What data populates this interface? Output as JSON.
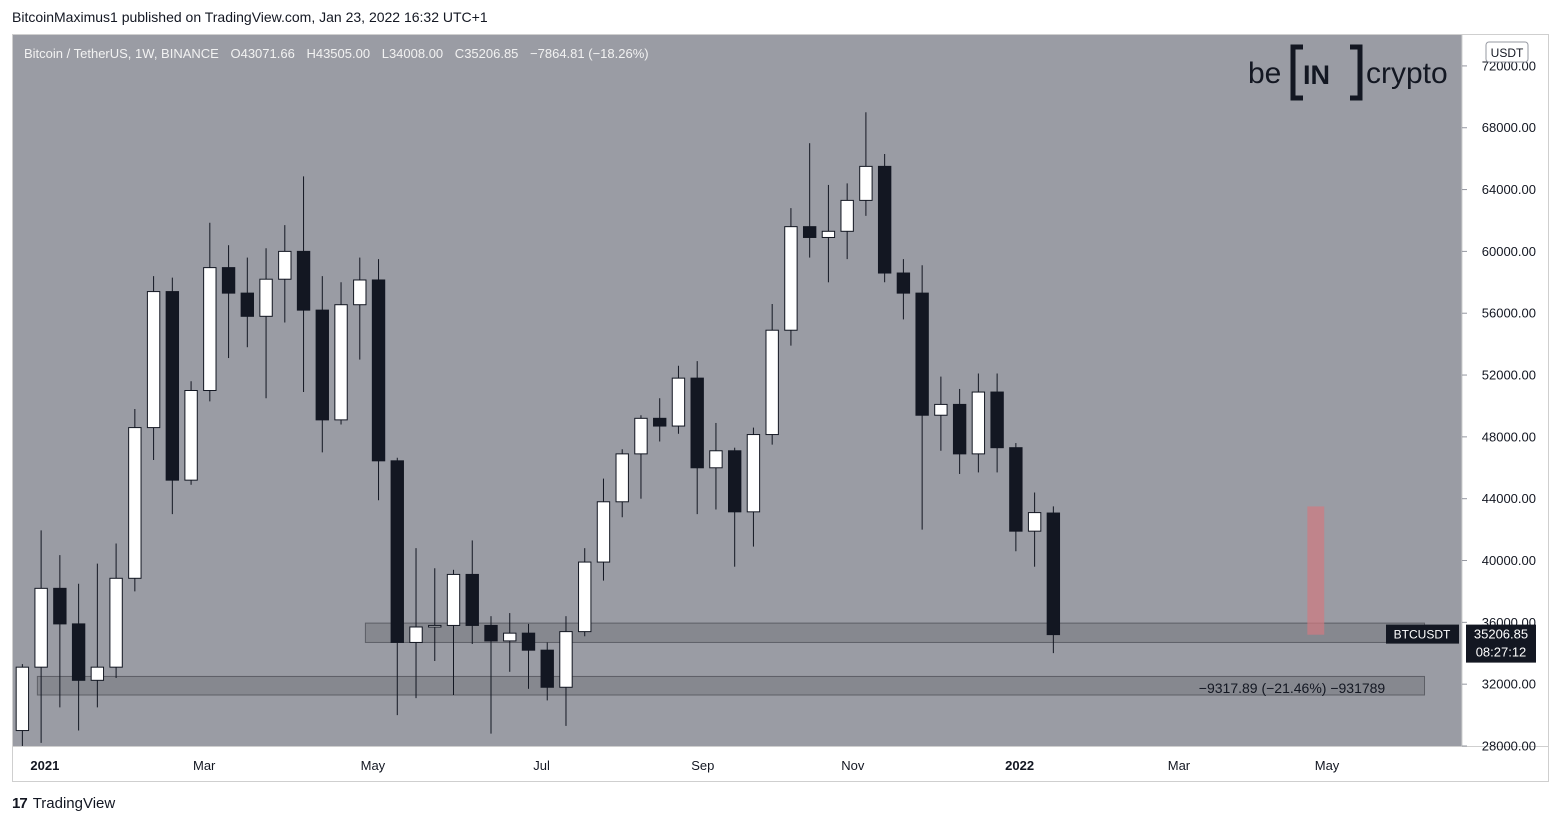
{
  "caption": "BitcoinMaximus1 published on TradingView.com, Jan 23, 2022 16:32 UTC+1",
  "footer_brand": "TradingView",
  "footer_logo_glyph": "17",
  "watermark": {
    "left": "be",
    "middle": "IN",
    "right": "crypto"
  },
  "legend": {
    "symbol": "Bitcoin / TetherUS, 1W, BINANCE",
    "o_label": "O",
    "o_value": "43071.66",
    "h_label": "H",
    "h_value": "43505.00",
    "l_label": "L",
    "l_value": "34008.00",
    "c_label": "C",
    "c_value": "35206.85",
    "change": "−7864.81 (−18.26%)"
  },
  "currency_badge": "USDT",
  "price_tag": {
    "symbol": "BTCUSDT",
    "price": "35206.85",
    "countdown": "08:27:12"
  },
  "measure_label": "−9317.89 (−21.46%) −931789",
  "colors": {
    "plot_bg": "#9a9ca4",
    "bull": "#ffffff",
    "bear": "#131722",
    "zone": "#7f8188",
    "measure": "#d07a80",
    "axis_text": "#131722"
  },
  "chart_data": {
    "type": "candlestick",
    "title": "Bitcoin / TetherUS, 1W, BINANCE",
    "ylim": [
      28000,
      74000
    ],
    "y_ticks": [
      28000,
      32000,
      36000,
      40000,
      44000,
      48000,
      52000,
      56000,
      60000,
      64000,
      68000,
      72000
    ],
    "y_tick_labels": [
      "28000.00",
      "32000.00",
      "36000.00",
      "40000.00",
      "44000.00",
      "48000.00",
      "52000.00",
      "56000.00",
      "60000.00",
      "64000.00",
      "68000.00",
      "72000.00"
    ],
    "x_ticks": [
      {
        "label": "2021",
        "index": 1.2
      },
      {
        "label": "Mar",
        "index": 9.7
      },
      {
        "label": "May",
        "index": 18.7
      },
      {
        "label": "Jul",
        "index": 27.7
      },
      {
        "label": "Sep",
        "index": 36.3
      },
      {
        "label": "Nov",
        "index": 44.3
      },
      {
        "label": "2022",
        "index": 53.2
      },
      {
        "label": "Mar",
        "index": 61.7
      },
      {
        "label": "May",
        "index": 69.6
      }
    ],
    "index_range": [
      -0.5,
      76.8
    ],
    "candles": [
      {
        "o": 29000,
        "h": 33300,
        "l": 28000,
        "c": 33100
      },
      {
        "o": 33100,
        "h": 41950,
        "l": 28200,
        "c": 38200
      },
      {
        "o": 38200,
        "h": 40350,
        "l": 30500,
        "c": 35900
      },
      {
        "o": 35900,
        "h": 38500,
        "l": 29000,
        "c": 32250
      },
      {
        "o": 32250,
        "h": 39800,
        "l": 30500,
        "c": 33100
      },
      {
        "o": 33100,
        "h": 41100,
        "l": 32400,
        "c": 38850
      },
      {
        "o": 38850,
        "h": 49800,
        "l": 38000,
        "c": 48600
      },
      {
        "o": 48600,
        "h": 58400,
        "l": 46500,
        "c": 57400
      },
      {
        "o": 57400,
        "h": 58300,
        "l": 43000,
        "c": 45200
      },
      {
        "o": 45200,
        "h": 51600,
        "l": 44900,
        "c": 51000
      },
      {
        "o": 51000,
        "h": 61850,
        "l": 50300,
        "c": 58950
      },
      {
        "o": 58950,
        "h": 60400,
        "l": 53100,
        "c": 57300
      },
      {
        "o": 57300,
        "h": 59600,
        "l": 53800,
        "c": 55800
      },
      {
        "o": 55800,
        "h": 60200,
        "l": 50500,
        "c": 58200
      },
      {
        "o": 58200,
        "h": 61700,
        "l": 55400,
        "c": 60000
      },
      {
        "o": 60000,
        "h": 64850,
        "l": 50900,
        "c": 56200
      },
      {
        "o": 56200,
        "h": 58400,
        "l": 47000,
        "c": 49100
      },
      {
        "o": 49100,
        "h": 58000,
        "l": 48800,
        "c": 56550
      },
      {
        "o": 56550,
        "h": 59600,
        "l": 53000,
        "c": 58150
      },
      {
        "o": 58150,
        "h": 59500,
        "l": 43900,
        "c": 46450
      },
      {
        "o": 46450,
        "h": 46650,
        "l": 30000,
        "c": 34700
      },
      {
        "o": 34700,
        "h": 40800,
        "l": 31100,
        "c": 35700
      },
      {
        "o": 35700,
        "h": 39500,
        "l": 33500,
        "c": 35800
      },
      {
        "o": 35800,
        "h": 39400,
        "l": 31300,
        "c": 39100
      },
      {
        "o": 39100,
        "h": 41300,
        "l": 34600,
        "c": 35800
      },
      {
        "o": 35800,
        "h": 36400,
        "l": 28800,
        "c": 34800
      },
      {
        "o": 34800,
        "h": 36600,
        "l": 32800,
        "c": 35300
      },
      {
        "o": 35300,
        "h": 35900,
        "l": 31700,
        "c": 34200
      },
      {
        "o": 34200,
        "h": 34700,
        "l": 30950,
        "c": 31800
      },
      {
        "o": 31800,
        "h": 36400,
        "l": 29300,
        "c": 35400
      },
      {
        "o": 35400,
        "h": 40800,
        "l": 35100,
        "c": 39900
      },
      {
        "o": 39900,
        "h": 45300,
        "l": 38700,
        "c": 43800
      },
      {
        "o": 43800,
        "h": 47200,
        "l": 42800,
        "c": 46900
      },
      {
        "o": 46900,
        "h": 49400,
        "l": 44000,
        "c": 49200
      },
      {
        "o": 49200,
        "h": 50500,
        "l": 47700,
        "c": 48700
      },
      {
        "o": 48700,
        "h": 52600,
        "l": 48200,
        "c": 51800
      },
      {
        "o": 51800,
        "h": 52900,
        "l": 43000,
        "c": 46000
      },
      {
        "o": 46000,
        "h": 48900,
        "l": 43300,
        "c": 47100
      },
      {
        "o": 47100,
        "h": 47300,
        "l": 39600,
        "c": 43150
      },
      {
        "o": 43150,
        "h": 48600,
        "l": 40900,
        "c": 48150
      },
      {
        "o": 48150,
        "h": 56600,
        "l": 47500,
        "c": 54900
      },
      {
        "o": 54900,
        "h": 62800,
        "l": 53900,
        "c": 61600
      },
      {
        "o": 61600,
        "h": 67000,
        "l": 59600,
        "c": 60900
      },
      {
        "o": 60900,
        "h": 64300,
        "l": 58000,
        "c": 61300
      },
      {
        "o": 61300,
        "h": 64400,
        "l": 59500,
        "c": 63300
      },
      {
        "o": 63300,
        "h": 69000,
        "l": 62300,
        "c": 65500
      },
      {
        "o": 65500,
        "h": 66300,
        "l": 58000,
        "c": 58600
      },
      {
        "o": 58600,
        "h": 59500,
        "l": 55600,
        "c": 57300
      },
      {
        "o": 57300,
        "h": 59100,
        "l": 42000,
        "c": 49400
      },
      {
        "o": 49400,
        "h": 51900,
        "l": 47100,
        "c": 50100
      },
      {
        "o": 50100,
        "h": 51100,
        "l": 45600,
        "c": 46900
      },
      {
        "o": 46900,
        "h": 52100,
        "l": 45700,
        "c": 50900
      },
      {
        "o": 50900,
        "h": 52100,
        "l": 45700,
        "c": 47300
      },
      {
        "o": 47300,
        "h": 47600,
        "l": 40600,
        "c": 41900
      },
      {
        "o": 41900,
        "h": 44400,
        "l": 39600,
        "c": 43100
      },
      {
        "o": 43071.66,
        "h": 43505.0,
        "l": 34008.0,
        "c": 35206.85
      }
    ],
    "zones": [
      {
        "from_index": 18.3,
        "to_index": 74.8,
        "low": 34700,
        "high": 35950
      },
      {
        "from_index": 0.8,
        "to_index": 74.8,
        "low": 31300,
        "high": 32500
      }
    ],
    "measure_bar": {
      "index": 69.0,
      "low": 35200,
      "high": 43500
    },
    "last_price": 35206.85
  }
}
